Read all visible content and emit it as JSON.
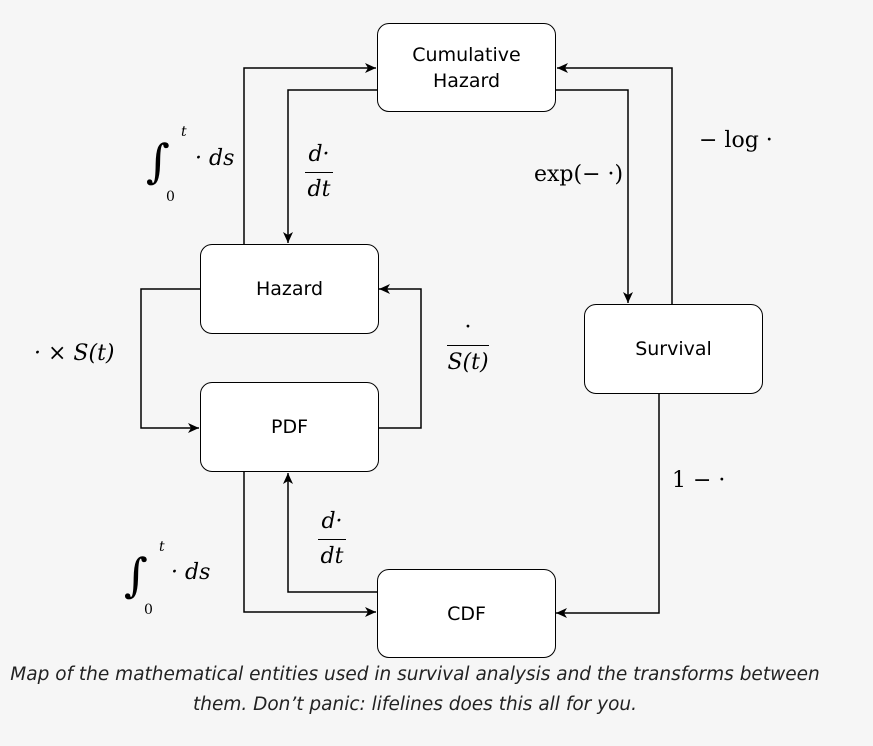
{
  "nodes": {
    "cumulative_hazard": "Cumulative\nHazard",
    "hazard": "Hazard",
    "pdf": "PDF",
    "survival": "Survival",
    "cdf": "CDF"
  },
  "transforms": {
    "cumhaz_to_hazard": {
      "num": "d·",
      "den": "dt"
    },
    "hazard_to_cumhaz": {
      "upper": "t",
      "lower": "0",
      "body": "· ds"
    },
    "cumhaz_to_survival": "exp(− ·)",
    "survival_to_cumhaz": "− log ·",
    "hazard_to_pdf": "· × S(t)",
    "pdf_to_hazard": {
      "num": "·",
      "den": "S(t)"
    },
    "cdf_to_pdf": {
      "num": "d·",
      "den": "dt"
    },
    "pdf_to_cdf": {
      "upper": "t",
      "lower": "0",
      "body": "· ds"
    },
    "survival_cdf": "1 − ·"
  },
  "caption": {
    "line1": "Map of the mathematical entities used in survival analysis and the transforms between",
    "line2": "them. Don’t panic: lifelines does this all for you."
  },
  "colors": {
    "background": "#f6f6f6",
    "box_fill": "#ffffff",
    "stroke": "#000000"
  }
}
